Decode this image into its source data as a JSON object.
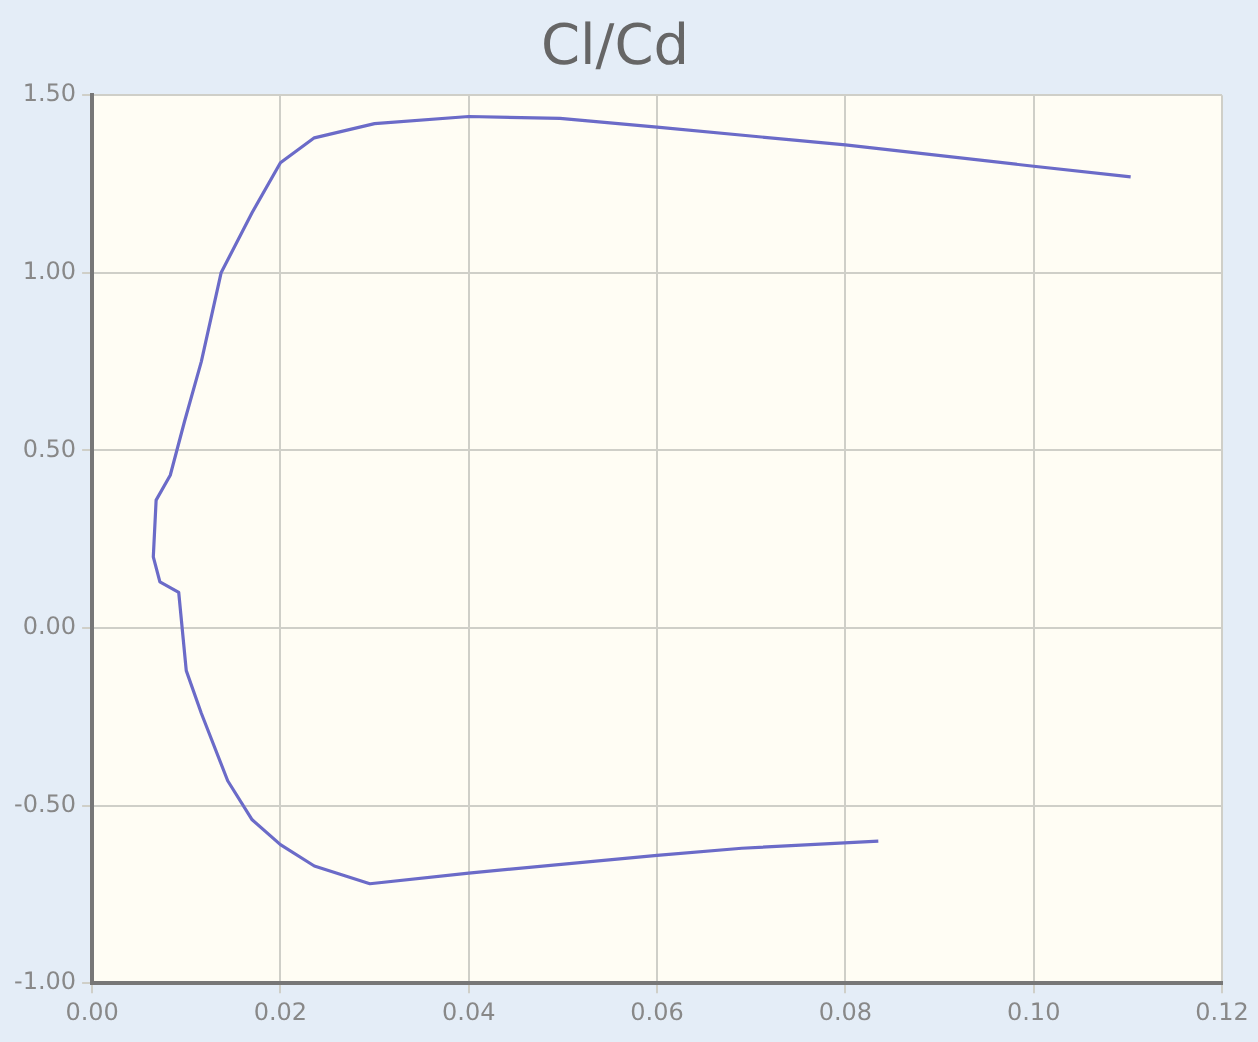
{
  "chart_data": {
    "type": "line",
    "title": "Cl/Cd",
    "x": [
      0.0835,
      0.069,
      0.06,
      0.04,
      0.0295,
      0.0236,
      0.02,
      0.017,
      0.0144,
      0.0116,
      0.01,
      0.0092,
      0.0072,
      0.0065,
      0.0068,
      0.0083,
      0.0098,
      0.0116,
      0.0137,
      0.017,
      0.02,
      0.0236,
      0.03,
      0.04,
      0.0497,
      0.06,
      0.08,
      0.1,
      0.1103
    ],
    "series": [
      {
        "color": "#6b6bc8",
        "values": [
          -0.6,
          -0.62,
          -0.64,
          -0.69,
          -0.72,
          -0.67,
          -0.61,
          -0.54,
          -0.43,
          -0.24,
          -0.12,
          0.1,
          0.13,
          0.2,
          0.36,
          0.43,
          0.58,
          0.75,
          1.0,
          1.17,
          1.31,
          1.38,
          1.42,
          1.44,
          1.435,
          1.41,
          1.36,
          1.3,
          1.27
        ]
      }
    ],
    "xlim": [
      0,
      0.12
    ],
    "xticks": [
      {
        "value": 0,
        "label": "0.00"
      },
      {
        "value": 0.02,
        "label": "0.02"
      },
      {
        "value": 0.04,
        "label": "0.04"
      },
      {
        "value": 0.06,
        "label": "0.06"
      },
      {
        "value": 0.08,
        "label": "0.08"
      },
      {
        "value": 0.1,
        "label": "0.10"
      },
      {
        "value": 0.12,
        "label": "0.12"
      }
    ],
    "ylim": [
      -1,
      1.5
    ],
    "yticks": [
      {
        "value": -1,
        "label": "-1.00"
      },
      {
        "value": -0.5,
        "label": "-0.50"
      },
      {
        "value": 0,
        "label": "0.00"
      },
      {
        "value": 0.5,
        "label": "0.50"
      },
      {
        "value": 1,
        "label": "1.00"
      },
      {
        "value": 1.5,
        "label": "1.50"
      }
    ],
    "grid": true,
    "legend": false,
    "marker": "none",
    "line_style": "solid"
  }
}
